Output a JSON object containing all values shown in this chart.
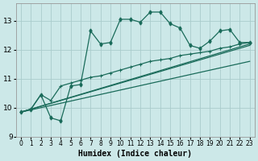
{
  "title": "",
  "xlabel": "Humidex (Indice chaleur)",
  "bg_color": "#cce8e8",
  "grid_color": "#aacccc",
  "line_color": "#1a6b5a",
  "xlim": [
    -0.5,
    23.5
  ],
  "ylim": [
    9,
    13.6
  ],
  "yticks": [
    9,
    10,
    11,
    12,
    13
  ],
  "xticks": [
    0,
    1,
    2,
    3,
    4,
    5,
    6,
    7,
    8,
    9,
    10,
    11,
    12,
    13,
    14,
    15,
    16,
    17,
    18,
    19,
    20,
    21,
    22,
    23
  ],
  "series0_x": [
    0,
    1,
    2,
    3,
    4,
    5,
    6,
    7,
    8,
    9,
    10,
    11,
    12,
    13,
    14,
    15,
    16,
    17,
    18,
    19,
    20,
    21,
    22,
    23
  ],
  "series0_y": [
    9.85,
    9.95,
    10.45,
    9.65,
    9.55,
    10.75,
    10.8,
    12.65,
    12.2,
    12.25,
    13.05,
    13.05,
    12.95,
    13.3,
    13.3,
    12.9,
    12.75,
    12.15,
    12.05,
    12.3,
    12.65,
    12.7,
    12.25,
    12.25
  ],
  "series1_x": [
    0,
    1,
    2,
    3,
    4,
    5,
    6,
    7,
    8,
    9,
    10,
    11,
    12,
    13,
    14,
    15,
    16,
    17,
    18,
    19,
    20,
    21,
    22,
    23
  ],
  "series1_y": [
    9.85,
    9.95,
    10.45,
    10.25,
    10.75,
    10.85,
    10.95,
    11.05,
    11.1,
    11.2,
    11.3,
    11.4,
    11.5,
    11.6,
    11.65,
    11.7,
    11.8,
    11.85,
    11.9,
    11.95,
    12.05,
    12.1,
    12.2,
    12.25
  ],
  "series2_x": [
    0,
    23
  ],
  "series2_y": [
    9.85,
    12.2
  ],
  "series3_x": [
    0,
    23
  ],
  "series3_y": [
    9.85,
    12.15
  ],
  "series4_x": [
    0,
    23
  ],
  "series4_y": [
    9.85,
    11.6
  ]
}
